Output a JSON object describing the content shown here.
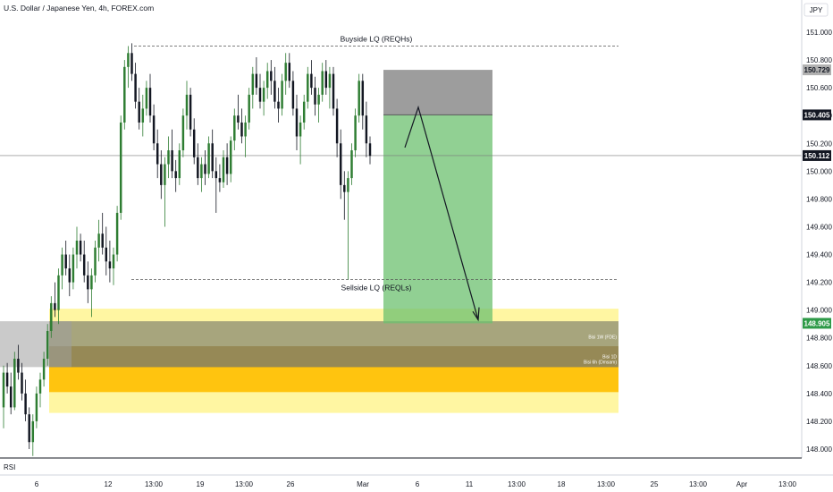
{
  "chart_data": {
    "type": "candlestick",
    "title": "U.S. Dollar / Japanese Yen, 4h, FOREX.com",
    "currency": "JPY",
    "y_ticks": [
      "151.000",
      "150.800",
      "150.600",
      "150.400",
      "150.200",
      "150.000",
      "149.800",
      "149.600",
      "149.400",
      "149.200",
      "149.000",
      "148.800",
      "148.600",
      "148.400",
      "148.200",
      "148.000"
    ],
    "y_tick_values": [
      151.0,
      150.8,
      150.6,
      150.4,
      150.2,
      150.0,
      149.8,
      149.6,
      149.4,
      149.2,
      149.0,
      148.8,
      148.6,
      148.4,
      148.2,
      148.0
    ],
    "ylim": [
      147.93,
      151.18
    ],
    "x_ticks": [
      "6",
      "12",
      "13:00",
      "19",
      "13:00",
      "26",
      "Mar",
      "6",
      "11",
      "13:00",
      "18",
      "13:00",
      "25",
      "13:00",
      "Apr",
      "13:00"
    ],
    "price_tags": [
      {
        "label": "150.729",
        "value": 150.729,
        "style": "gray"
      },
      {
        "label": "150.405",
        "value": 150.405,
        "style": "dark"
      },
      {
        "label": "150.112",
        "value": 150.112,
        "style": "dark"
      },
      {
        "label": "148.905",
        "value": 148.905,
        "style": "green"
      }
    ],
    "annotations": {
      "buyside": {
        "label": "Buyside LQ (REQHs)",
        "value": 150.9
      },
      "sellside": {
        "label": "Sellside LQ (REQLs)",
        "value": 149.22
      },
      "zone_labels": [
        "Bisi 1W (FDE)",
        "Bisi 1D",
        "Bisi 6h (Dmsam)"
      ]
    },
    "indicator": "RSI",
    "position": {
      "entry": 150.405,
      "stop": 150.729,
      "target": 148.905
    },
    "zones": [
      {
        "from": 148.26,
        "to": 149.01,
        "color": "#fff59d"
      },
      {
        "from": 148.41,
        "to": 148.74,
        "color": "#ffc107"
      },
      {
        "from": 148.59,
        "to": 148.74,
        "color": "#b8860b"
      },
      {
        "from": 148.59,
        "to": 148.92,
        "color": "#8a8a70"
      }
    ],
    "candles": [
      [
        148.3,
        148.6,
        148.15,
        148.55
      ],
      [
        148.55,
        148.62,
        148.4,
        148.45
      ],
      [
        148.45,
        148.55,
        148.25,
        148.3
      ],
      [
        148.3,
        148.7,
        148.28,
        148.65
      ],
      [
        148.65,
        148.75,
        148.5,
        148.55
      ],
      [
        148.55,
        148.62,
        148.35,
        148.4
      ],
      [
        148.4,
        148.5,
        148.2,
        148.25
      ],
      [
        148.25,
        148.3,
        148.0,
        148.05
      ],
      [
        148.05,
        148.25,
        147.95,
        148.2
      ],
      [
        148.2,
        148.45,
        148.15,
        148.4
      ],
      [
        148.4,
        148.55,
        148.3,
        148.5
      ],
      [
        148.5,
        148.7,
        148.45,
        148.65
      ],
      [
        148.65,
        148.9,
        148.6,
        148.85
      ],
      [
        148.85,
        149.1,
        148.8,
        149.05
      ],
      [
        149.05,
        149.2,
        148.95,
        149.0
      ],
      [
        149.0,
        149.3,
        148.9,
        149.25
      ],
      [
        149.25,
        149.45,
        149.15,
        149.4
      ],
      [
        149.4,
        149.5,
        149.25,
        149.3
      ],
      [
        149.3,
        149.4,
        149.1,
        149.2
      ],
      [
        149.2,
        149.45,
        149.15,
        149.4
      ],
      [
        149.4,
        149.6,
        149.3,
        149.5
      ],
      [
        149.5,
        149.55,
        149.35,
        149.4
      ],
      [
        149.4,
        149.5,
        149.2,
        149.25
      ],
      [
        149.25,
        149.35,
        149.05,
        149.15
      ],
      [
        149.15,
        149.3,
        148.95,
        149.25
      ],
      [
        149.25,
        149.5,
        149.2,
        149.45
      ],
      [
        149.45,
        149.65,
        149.35,
        149.55
      ],
      [
        149.55,
        149.7,
        149.4,
        149.45
      ],
      [
        149.45,
        149.6,
        149.25,
        149.35
      ],
      [
        149.35,
        149.5,
        149.2,
        149.3
      ],
      [
        149.3,
        149.45,
        149.18,
        149.4
      ],
      [
        149.4,
        149.75,
        149.35,
        149.7
      ],
      [
        149.7,
        150.4,
        149.65,
        150.35
      ],
      [
        150.35,
        150.8,
        150.3,
        150.75
      ],
      [
        150.75,
        150.9,
        150.6,
        150.85
      ],
      [
        150.85,
        150.92,
        150.65,
        150.7
      ],
      [
        150.7,
        150.78,
        150.45,
        150.5
      ],
      [
        150.5,
        150.6,
        150.3,
        150.35
      ],
      [
        150.35,
        150.55,
        150.25,
        150.45
      ],
      [
        150.45,
        150.65,
        150.4,
        150.6
      ],
      [
        150.6,
        150.7,
        150.35,
        150.4
      ],
      [
        150.4,
        150.48,
        150.15,
        150.2
      ],
      [
        150.2,
        150.3,
        149.95,
        150.05
      ],
      [
        150.05,
        150.15,
        149.8,
        149.9
      ],
      [
        149.9,
        150.1,
        149.6,
        150.05
      ],
      [
        150.05,
        150.25,
        149.95,
        150.15
      ],
      [
        150.15,
        150.3,
        149.95,
        150.0
      ],
      [
        150.0,
        150.08,
        149.85,
        149.95
      ],
      [
        149.95,
        150.2,
        149.9,
        150.15
      ],
      [
        150.15,
        150.45,
        150.1,
        150.4
      ],
      [
        150.4,
        150.65,
        150.3,
        150.55
      ],
      [
        150.55,
        150.6,
        150.25,
        150.3
      ],
      [
        150.3,
        150.38,
        150.05,
        150.1
      ],
      [
        150.1,
        150.2,
        149.9,
        149.95
      ],
      [
        149.95,
        150.1,
        149.85,
        150.05
      ],
      [
        150.05,
        150.15,
        149.9,
        149.98
      ],
      [
        149.98,
        150.25,
        149.95,
        150.2
      ],
      [
        150.2,
        150.3,
        149.95,
        150.0
      ],
      [
        150.0,
        150.1,
        149.7,
        149.95
      ],
      [
        149.95,
        150.05,
        149.85,
        149.92
      ],
      [
        149.92,
        150.15,
        149.88,
        150.1
      ],
      [
        150.1,
        150.2,
        149.9,
        149.98
      ],
      [
        149.98,
        150.25,
        149.92,
        150.22
      ],
      [
        150.22,
        150.45,
        150.15,
        150.4
      ],
      [
        150.4,
        150.55,
        150.3,
        150.35
      ],
      [
        150.35,
        150.45,
        150.2,
        150.25
      ],
      [
        150.25,
        150.4,
        150.1,
        150.35
      ],
      [
        150.35,
        150.6,
        150.3,
        150.55
      ],
      [
        150.55,
        150.75,
        150.45,
        150.7
      ],
      [
        150.7,
        150.82,
        150.55,
        150.6
      ],
      [
        150.6,
        150.7,
        150.45,
        150.5
      ],
      [
        150.5,
        150.65,
        150.4,
        150.6
      ],
      [
        150.6,
        150.78,
        150.52,
        150.72
      ],
      [
        150.72,
        150.8,
        150.55,
        150.65
      ],
      [
        150.65,
        150.75,
        150.45,
        150.5
      ],
      [
        150.5,
        150.6,
        150.35,
        150.45
      ],
      [
        150.45,
        150.7,
        150.4,
        150.65
      ],
      [
        150.65,
        150.85,
        150.55,
        150.78
      ],
      [
        150.78,
        150.85,
        150.6,
        150.65
      ],
      [
        150.65,
        150.72,
        150.4,
        150.45
      ],
      [
        150.45,
        150.55,
        150.15,
        150.25
      ],
      [
        150.25,
        150.4,
        150.05,
        150.35
      ],
      [
        150.35,
        150.55,
        150.3,
        150.5
      ],
      [
        150.5,
        150.75,
        150.45,
        150.7
      ],
      [
        150.7,
        150.8,
        150.55,
        150.6
      ],
      [
        150.6,
        150.68,
        150.4,
        150.48
      ],
      [
        150.48,
        150.6,
        150.35,
        150.55
      ],
      [
        150.55,
        150.78,
        150.5,
        150.72
      ],
      [
        150.72,
        150.8,
        150.55,
        150.6
      ],
      [
        150.6,
        150.75,
        150.45,
        150.7
      ],
      [
        150.7,
        150.75,
        150.4,
        150.45
      ],
      [
        150.45,
        150.52,
        150.1,
        150.2
      ],
      [
        150.2,
        150.3,
        149.8,
        149.9
      ],
      [
        149.9,
        150.0,
        149.65,
        149.85
      ],
      [
        149.85,
        150.0,
        149.22,
        149.95
      ],
      [
        149.95,
        150.2,
        149.9,
        150.15
      ],
      [
        150.15,
        150.45,
        150.1,
        150.4
      ],
      [
        150.4,
        150.7,
        150.35,
        150.65
      ],
      [
        150.65,
        150.7,
        150.3,
        150.4
      ],
      [
        150.4,
        150.5,
        150.1,
        150.2
      ],
      [
        150.2,
        150.25,
        150.05,
        150.11
      ]
    ]
  }
}
